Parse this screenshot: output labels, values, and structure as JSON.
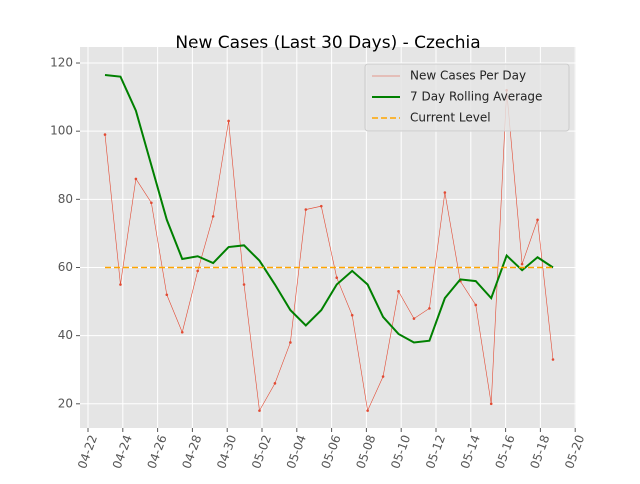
{
  "chart_data": {
    "type": "line",
    "title": "New Cases (Last 30 Days) - Czechia",
    "xticks": [
      "04-22",
      "04-24",
      "04-26",
      "04-28",
      "04-30",
      "05-02",
      "05-04",
      "05-06",
      "05-08",
      "05-10",
      "05-12",
      "05-14",
      "05-16",
      "05-18",
      "05-20"
    ],
    "series": [
      {
        "name": "New Cases Per Day",
        "color": "#e24a33",
        "style": "thin-dots",
        "values": [
          99,
          55,
          86,
          79,
          52,
          41,
          59,
          75,
          103,
          55,
          18,
          26,
          38,
          77,
          78,
          57,
          46,
          18,
          28,
          53,
          45,
          48,
          82,
          56,
          49,
          20,
          112,
          61,
          74,
          33
        ]
      },
      {
        "name": "7 Day Rolling Average",
        "color": "#008000",
        "style": "thick",
        "values": [
          116.5,
          116,
          106,
          90,
          74,
          62.5,
          63.3,
          61.3,
          66,
          66.5,
          62,
          55,
          47.5,
          43,
          47.5,
          55,
          59,
          55,
          45.5,
          40.5,
          38,
          38.5,
          51,
          56.5,
          56,
          51,
          63.5,
          59.2,
          63,
          60
        ]
      },
      {
        "name": "Current Level",
        "color": "#ffa500",
        "style": "dashed",
        "values": [
          60,
          60
        ]
      }
    ],
    "ylim": [
      12.9,
      124.7
    ],
    "yticks": [
      20,
      40,
      60,
      80,
      100,
      120
    ],
    "grid": true,
    "legend": "upper right"
  }
}
